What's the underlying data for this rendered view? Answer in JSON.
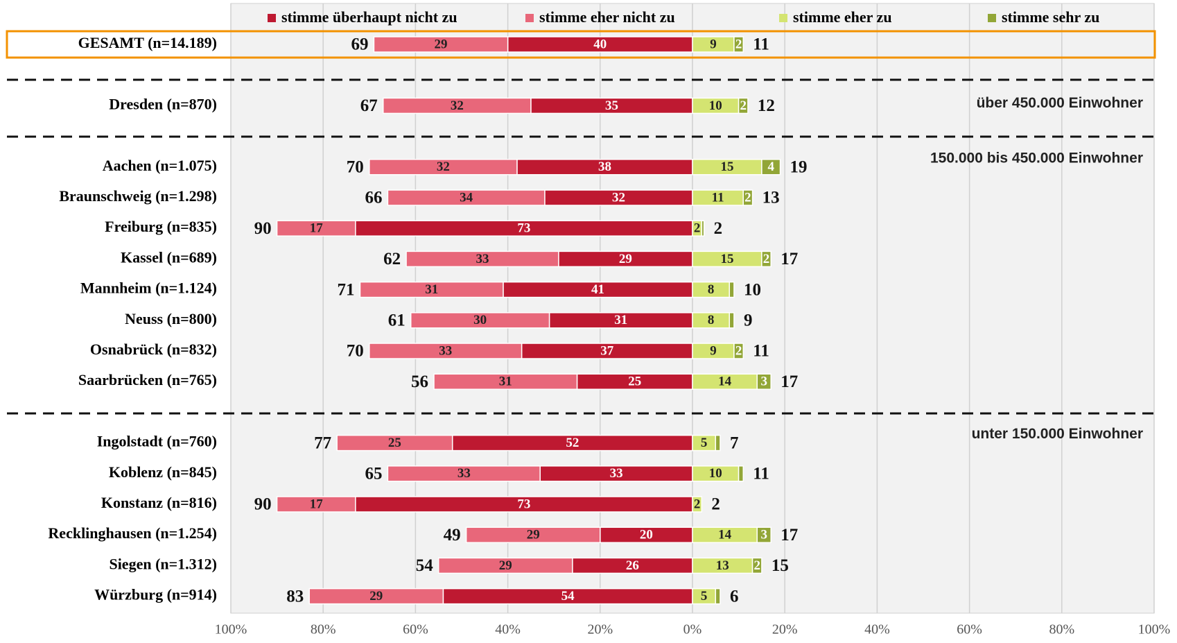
{
  "chart_data": {
    "type": "bar",
    "categories": [
      "GESAMT (n=14.189)",
      "Dresden (n=870)",
      "Aachen (n=1.075)",
      "Braunschweig (n=1.298)",
      "Freiburg (n=835)",
      "Kassel (n=689)",
      "Mannheim (n=1.124)",
      "Neuss (n=800)",
      "Osnabrück (n=832)",
      "Saarbrücken (n=765)",
      "Ingolstadt (n=760)",
      "Koblenz (n=845)",
      "Konstanz (n=816)",
      "Recklinghausen (n=1.254)",
      "Siegen (n=1.312)",
      "Würzburg (n=914)"
    ],
    "series": [
      {
        "name": "stimme überhaupt nicht zu",
        "color": "#be1931",
        "direction": "left",
        "values": [
          40,
          35,
          38,
          32,
          73,
          29,
          41,
          31,
          37,
          25,
          52,
          33,
          73,
          20,
          26,
          54
        ]
      },
      {
        "name": "stimme eher nicht zu",
        "color": "#e8677a",
        "direction": "left",
        "values": [
          29,
          32,
          32,
          34,
          17,
          33,
          31,
          30,
          33,
          31,
          25,
          33,
          17,
          29,
          29,
          29
        ]
      },
      {
        "name": "stimme eher  zu",
        "color": "#d4e471",
        "direction": "right",
        "values": [
          9,
          10,
          15,
          11,
          2,
          15,
          8,
          8,
          9,
          14,
          5,
          10,
          2,
          14,
          13,
          5
        ]
      },
      {
        "name": "stimme sehr zu",
        "color": "#92a637",
        "direction": "right",
        "values": [
          2,
          2,
          4,
          2,
          0.5,
          2,
          1,
          1,
          2,
          3,
          1,
          1,
          0,
          3,
          2,
          1
        ],
        "value_labels": [
          "2",
          "2",
          "4",
          "2",
          null,
          "2",
          null,
          null,
          "2",
          "3",
          null,
          null,
          null,
          "3",
          "2",
          null
        ]
      }
    ],
    "totals_left": [
      69,
      67,
      70,
      66,
      90,
      62,
      71,
      61,
      70,
      56,
      77,
      65,
      90,
      49,
      54,
      83
    ],
    "totals_right": [
      11,
      12,
      19,
      13,
      2,
      17,
      10,
      9,
      11,
      17,
      7,
      11,
      2,
      17,
      15,
      6
    ],
    "annotations": [
      {
        "text": "über 450.000 Einwohner",
        "row": 1
      },
      {
        "text": "150.000 bis 450.000 Einwohner",
        "row": 2
      },
      {
        "text": "unter 150.000 Einwohner",
        "row": 10
      }
    ],
    "xlim": [
      -100,
      100
    ],
    "xticks": [
      {
        "value": -100,
        "label": "100%"
      },
      {
        "value": -80,
        "label": "80%"
      },
      {
        "value": -60,
        "label": "60%"
      },
      {
        "value": -40,
        "label": "40%"
      },
      {
        "value": -20,
        "label": "20%"
      },
      {
        "value": 0,
        "label": "0%"
      },
      {
        "value": 20,
        "label": "20%"
      },
      {
        "value": 40,
        "label": "40%"
      },
      {
        "value": 60,
        "label": "60%"
      },
      {
        "value": 80,
        "label": "80%"
      },
      {
        "value": 100,
        "label": "100%"
      }
    ],
    "grid": true,
    "legend": "top"
  }
}
